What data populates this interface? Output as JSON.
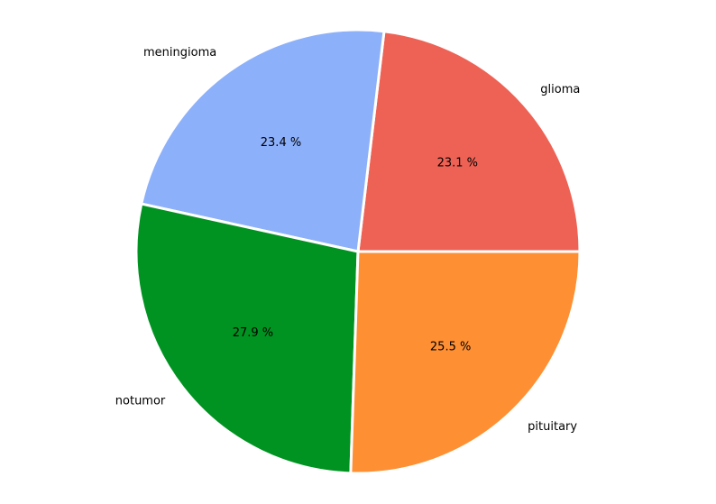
{
  "chart_data": {
    "type": "pie",
    "start_angle_deg": 0,
    "direction": "counterclockwise",
    "slices": [
      {
        "label": "glioma",
        "value": 23.1,
        "pct_label": "23.1 %",
        "color": "#EE6255"
      },
      {
        "label": "meningioma",
        "value": 23.4,
        "pct_label": "23.4 %",
        "color": "#8CB0FA"
      },
      {
        "label": "notumor",
        "value": 27.9,
        "pct_label": "27.9 %",
        "color": "#019321"
      },
      {
        "label": "pituitary",
        "value": 25.5,
        "pct_label": "25.5 %",
        "color": "#FF8F33"
      }
    ]
  }
}
